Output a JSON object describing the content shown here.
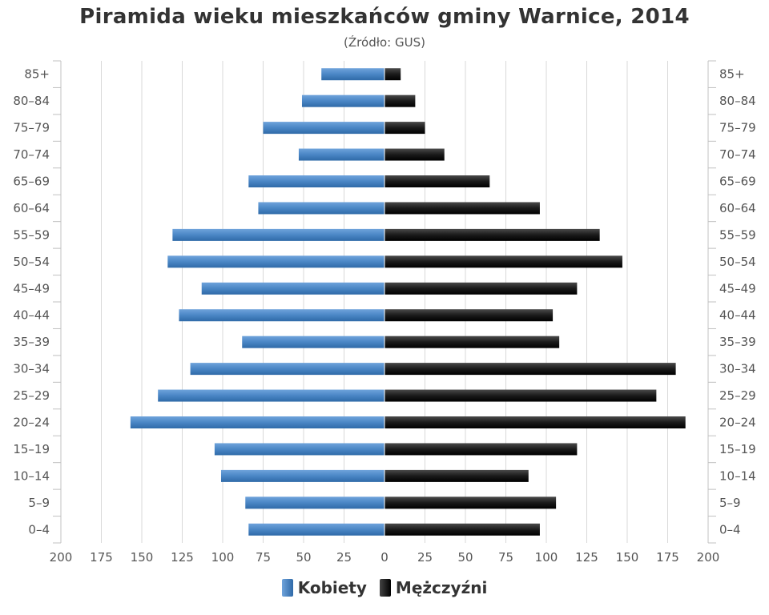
{
  "chart_data": {
    "type": "bar",
    "title": "Piramida wieku mieszkańców gminy Warnice, 2014",
    "subtitle": "(Źródło: GUS)",
    "categories": [
      "85+",
      "80–84",
      "75–79",
      "70–74",
      "65–69",
      "60–64",
      "55–59",
      "50–54",
      "45–49",
      "40–44",
      "35–39",
      "30–34",
      "25–29",
      "20–24",
      "15–19",
      "10–14",
      "5–9",
      "0–4"
    ],
    "series": [
      {
        "name": "Kobiety",
        "color": "#4a86c5",
        "values": [
          39,
          51,
          75,
          53,
          84,
          78,
          131,
          134,
          113,
          127,
          88,
          120,
          140,
          157,
          105,
          101,
          86,
          84
        ]
      },
      {
        "name": "Mężczyźni",
        "color": "#1a1a1a",
        "values": [
          10,
          19,
          25,
          37,
          65,
          96,
          133,
          147,
          119,
          104,
          108,
          180,
          168,
          186,
          119,
          89,
          106,
          96
        ]
      }
    ],
    "xlim": [
      -200,
      200
    ],
    "x_ticks": [
      "200",
      "175",
      "150",
      "125",
      "100",
      "75",
      "50",
      "25",
      "0",
      "25",
      "50",
      "75",
      "100",
      "125",
      "150",
      "175",
      "200"
    ],
    "grid": true,
    "legend_position": "bottom"
  }
}
